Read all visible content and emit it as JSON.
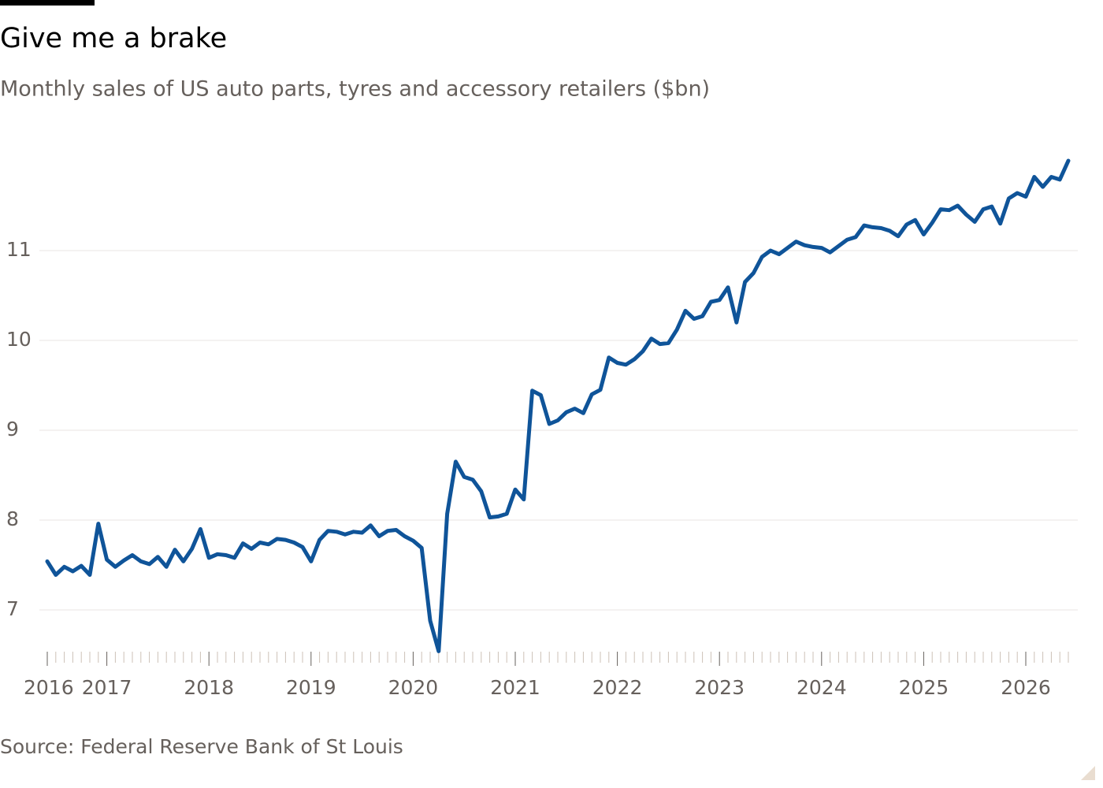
{
  "chart_data": {
    "type": "line",
    "title": "Give me a brake",
    "subtitle": "Monthly sales of US auto parts, tyres and accessory retailers ($bn)",
    "source": "Source: Federal Reserve Bank of St Louis",
    "categories": [
      "2016",
      null,
      null,
      null,
      null,
      null,
      null,
      "2017",
      null,
      null,
      null,
      null,
      null,
      null,
      null,
      null,
      null,
      null,
      null,
      "2018",
      null,
      null,
      null,
      null,
      null,
      null,
      null,
      null,
      null,
      null,
      null,
      "2019",
      null,
      null,
      null,
      null,
      null,
      null,
      null,
      null,
      null,
      null,
      null,
      "2020",
      null,
      null,
      null,
      null,
      null,
      null,
      null,
      null,
      null,
      null,
      null,
      "2021",
      null,
      null,
      null,
      null,
      null,
      null,
      null,
      null,
      null,
      null,
      null,
      "2022",
      null,
      null,
      null,
      null,
      null,
      null,
      null,
      null,
      null,
      null,
      null,
      "2023",
      null,
      null,
      null,
      null,
      null,
      null,
      null,
      null,
      null,
      null,
      null,
      "2024",
      null,
      null,
      null,
      null,
      null,
      null,
      null,
      null,
      null,
      null,
      null,
      "2025",
      null,
      null,
      null,
      null,
      null,
      null,
      null,
      null,
      null,
      null,
      null,
      "2026",
      null,
      null,
      null,
      null,
      null
    ],
    "series": [
      {
        "color": "#0f5499",
        "values": [
          7.54,
          7.39,
          7.48,
          7.43,
          7.49,
          7.39,
          7.96,
          7.56,
          7.48,
          7.55,
          7.61,
          7.54,
          7.51,
          7.59,
          7.48,
          7.67,
          7.54,
          7.68,
          7.9,
          7.58,
          7.62,
          7.61,
          7.58,
          7.74,
          7.68,
          7.75,
          7.73,
          7.79,
          7.78,
          7.75,
          7.7,
          7.54,
          7.78,
          7.88,
          7.87,
          7.84,
          7.87,
          7.86,
          7.94,
          7.82,
          7.88,
          7.89,
          7.82,
          7.77,
          7.69,
          6.88,
          6.54,
          8.07,
          8.65,
          8.48,
          8.45,
          8.32,
          8.03,
          8.04,
          8.07,
          8.34,
          8.23,
          9.44,
          9.39,
          9.07,
          9.11,
          9.2,
          9.24,
          9.19,
          9.4,
          9.45,
          9.81,
          9.75,
          9.73,
          9.79,
          9.88,
          10.02,
          9.96,
          9.97,
          10.12,
          10.33,
          10.24,
          10.27,
          10.43,
          10.45,
          10.59,
          10.2,
          10.65,
          10.75,
          10.93,
          11.0,
          10.96,
          11.03,
          11.1,
          11.06,
          11.04,
          11.03,
          10.98,
          11.05,
          11.12,
          11.15,
          11.28,
          11.26,
          11.25,
          11.22,
          11.16,
          11.29,
          11.34,
          11.18,
          11.31,
          11.46,
          11.45,
          11.5,
          11.4,
          11.32,
          11.46,
          11.49,
          11.3,
          11.58,
          11.64,
          11.6,
          11.82,
          11.71,
          11.82,
          11.79,
          12.0
        ]
      }
    ],
    "ylim": [
      6.5,
      12.1
    ],
    "yticks": [
      7,
      8,
      9,
      10,
      11
    ],
    "grid": true
  }
}
